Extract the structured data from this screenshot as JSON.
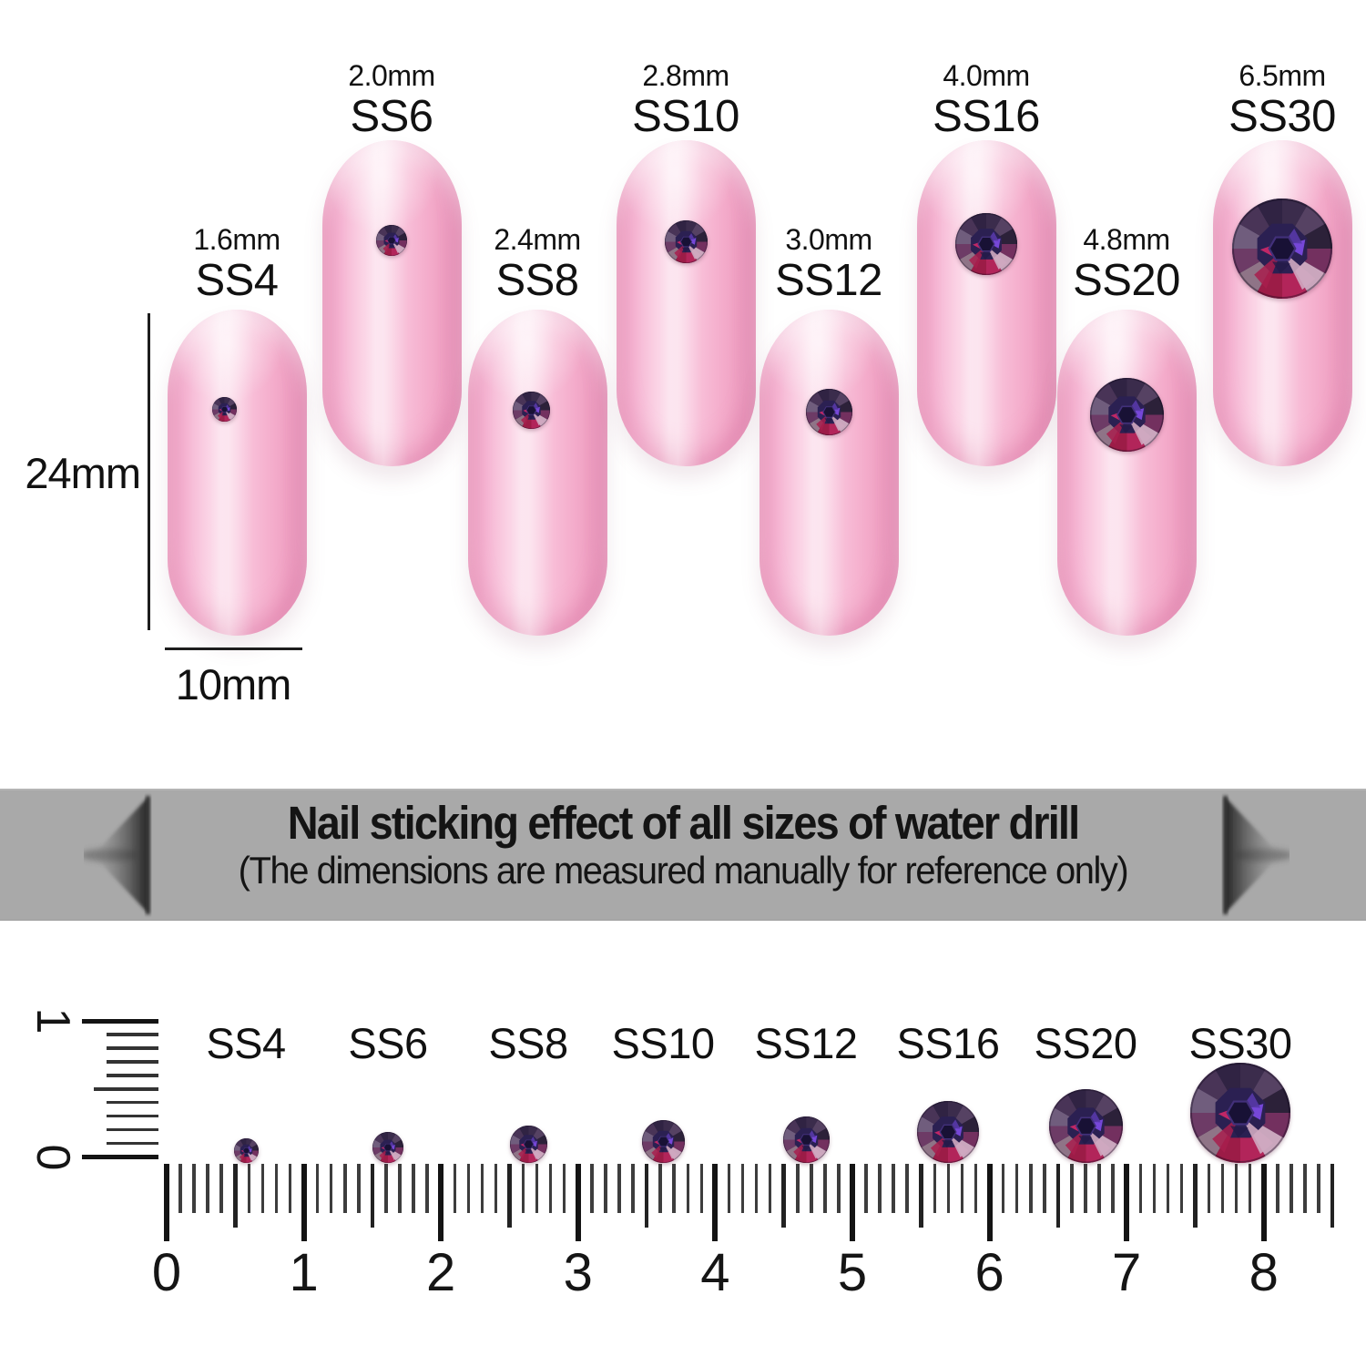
{
  "banner": {
    "line1": "Nail sticking effect of all sizes of water drill",
    "line2": "(The dimensions are measured manually for reference only)",
    "bg_color": "#a9a9a9",
    "text_color": "#141414"
  },
  "measurements": {
    "nail_length": "24mm",
    "nail_width": "10mm"
  },
  "sizes": [
    {
      "size": "SS4",
      "mm_label": "1.6mm",
      "mm": 1.6,
      "row": "lower"
    },
    {
      "size": "SS6",
      "mm_label": "2.0mm",
      "mm": 2.0,
      "row": "upper"
    },
    {
      "size": "SS8",
      "mm_label": "2.4mm",
      "mm": 2.4,
      "row": "lower"
    },
    {
      "size": "SS10",
      "mm_label": "2.8mm",
      "mm": 2.8,
      "row": "upper"
    },
    {
      "size": "SS12",
      "mm_label": "3.0mm",
      "mm": 3.0,
      "row": "lower"
    },
    {
      "size": "SS16",
      "mm_label": "4.0mm",
      "mm": 4.0,
      "row": "upper"
    },
    {
      "size": "SS20",
      "mm_label": "4.8mm",
      "mm": 4.8,
      "row": "lower"
    },
    {
      "size": "SS30",
      "mm_label": "6.5mm",
      "mm": 6.5,
      "row": "upper"
    }
  ],
  "ruler": {
    "horizontal_labels": [
      "0",
      "1",
      "2",
      "3",
      "4",
      "5",
      "6",
      "7",
      "8"
    ],
    "vertical_labels": [
      "1",
      "0"
    ]
  },
  "colors": {
    "nail_pink": "#f7b6d2",
    "banner_gray": "#a9a9a9",
    "stone_dark_purple": "#3b2c4c",
    "stone_crimson": "#a81f4e",
    "stone_highlight_pink": "#cfa9c0",
    "text": "#111111"
  }
}
